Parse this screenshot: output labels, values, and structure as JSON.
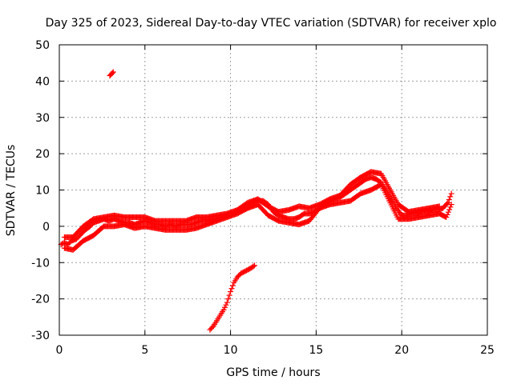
{
  "chart_data": {
    "type": "scatter",
    "title": "Day 325 of 2023, Sidereal Day-to-day VTEC variation (SDTVAR) for receiver xplo",
    "xlabel": "GPS time / hours",
    "ylabel": "SDTVAR / TECUs",
    "xlim": [
      0,
      25
    ],
    "ylim": [
      -30,
      50
    ],
    "xticks": [
      "0",
      "5",
      "10",
      "15",
      "20",
      "25"
    ],
    "yticks": [
      "-30",
      "-20",
      "-10",
      "0",
      "10",
      "20",
      "30",
      "40",
      "50"
    ],
    "grid": true,
    "marker": "+",
    "color": "#ff0000",
    "series": [
      {
        "name": "main",
        "x": [
          0.1,
          0.3,
          0.5,
          0.7,
          1.0,
          1.2,
          1.5,
          1.8,
          2.0,
          2.3,
          2.6,
          2.9,
          3.2,
          3.5,
          3.8,
          4.1,
          4.4,
          4.7,
          5.0,
          5.3,
          5.6,
          5.9,
          6.2,
          6.5,
          6.8,
          7.1,
          7.4,
          7.7,
          8.0,
          8.3,
          8.6,
          8.9,
          9.2,
          9.5,
          9.8,
          10.1,
          10.4,
          10.7,
          11.0,
          11.3,
          11.6,
          11.9,
          12.2,
          12.5,
          12.8,
          13.1,
          13.4,
          13.7,
          14.0,
          14.3,
          14.6,
          14.9,
          15.2,
          15.5,
          15.8,
          16.1,
          16.4,
          16.7,
          17.0,
          17.3,
          17.6,
          17.9,
          18.2,
          18.5,
          18.8,
          19.7,
          20.0,
          20.3,
          20.6,
          20.9,
          21.2,
          21.5,
          21.8,
          22.1,
          22.4,
          22.7,
          22.9
        ],
        "y": [
          -5,
          -4.5,
          -5,
          -4,
          -3.5,
          -2.5,
          -1,
          0,
          1,
          1.5,
          2,
          1.5,
          2,
          1.5,
          1,
          1,
          0.5,
          1,
          1.5,
          1,
          0.5,
          0.5,
          0,
          0.5,
          0,
          0.5,
          0.5,
          0.5,
          1,
          1.5,
          1.5,
          2,
          2,
          2.5,
          3,
          3.5,
          4,
          5,
          6,
          6.5,
          7,
          7,
          6,
          4,
          3,
          2.5,
          2,
          2,
          2.5,
          3.5,
          3.5,
          4,
          5,
          6,
          7,
          7.5,
          8,
          9,
          10,
          11,
          12,
          13,
          13.5,
          13,
          12,
          5,
          3,
          3,
          3.5,
          3.5,
          4,
          4,
          4.5,
          4.5,
          5,
          6.5,
          9
        ]
      },
      {
        "name": "spread-upper",
        "x": [
          0.3,
          0.8,
          1.4,
          2.0,
          2.6,
          3.2,
          3.8,
          4.4,
          5.0,
          5.6,
          6.2,
          6.8,
          7.4,
          8.0,
          8.6,
          9.2,
          9.8,
          10.4,
          11.0,
          11.6,
          12.2,
          12.8,
          13.4,
          14.0,
          14.6,
          15.2,
          15.8,
          16.4,
          17.0,
          17.6,
          18.2,
          18.8,
          19.8,
          20.4,
          21.0,
          21.6,
          22.2
        ],
        "y": [
          -3,
          -3,
          0,
          2,
          2.5,
          3,
          2.5,
          2.5,
          2.5,
          1.5,
          1.5,
          1.5,
          1.5,
          2.5,
          2.5,
          3,
          3.5,
          4.5,
          6.5,
          7.5,
          5.5,
          4,
          4.5,
          5.5,
          5,
          6,
          7.5,
          8.5,
          11.5,
          13.5,
          15,
          14.5,
          6,
          4,
          4.5,
          5,
          5.5
        ]
      },
      {
        "name": "spread-lower",
        "x": [
          0.3,
          0.8,
          1.4,
          2.0,
          2.6,
          3.2,
          3.8,
          4.4,
          5.0,
          5.6,
          6.2,
          6.8,
          7.4,
          8.0,
          8.6,
          9.2,
          9.8,
          10.4,
          11.0,
          11.6,
          12.2,
          12.8,
          13.4,
          14.0,
          14.6,
          15.2,
          15.8,
          16.4,
          17.0,
          17.6,
          18.2,
          18.8,
          19.8,
          20.4,
          21.0,
          21.6,
          22.2,
          22.6,
          22.9
        ],
        "y": [
          -6,
          -6.5,
          -4,
          -2.5,
          0,
          0,
          0.5,
          -0.5,
          0,
          -0.5,
          -1,
          -1,
          -1,
          -0.5,
          0.5,
          1.5,
          2.5,
          3.5,
          5,
          6,
          3,
          1.5,
          1,
          0.5,
          1.5,
          5,
          6,
          6.5,
          7,
          9,
          10,
          11.5,
          2,
          2,
          2.5,
          3,
          3.5,
          2.5,
          6
        ]
      },
      {
        "name": "descending-branch",
        "x": [
          8.8,
          9.0,
          9.2,
          9.4,
          9.6,
          9.8,
          10.0,
          10.2,
          10.4,
          10.6,
          10.8,
          11.0,
          11.2,
          11.4
        ],
        "y": [
          -28.5,
          -27.5,
          -26,
          -24.5,
          -23,
          -21,
          -18,
          -15.5,
          -14,
          -13,
          -12.5,
          -12,
          -11.5,
          -10.8
        ]
      },
      {
        "name": "outlier",
        "x": [
          2.95,
          3.05,
          3.15
        ],
        "y": [
          41.5,
          42,
          42.5
        ]
      }
    ]
  }
}
